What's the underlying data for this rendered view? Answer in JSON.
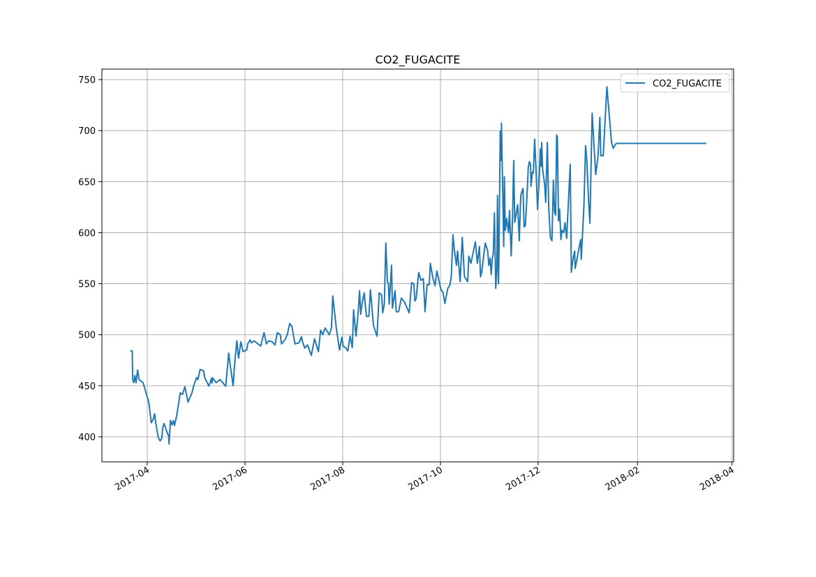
{
  "chart_data": {
    "type": "line",
    "title": "CO2_FUGACITE",
    "xlabel": "",
    "ylabel": "",
    "x_unit": "days since 2017-04-01",
    "xlim": [
      -28.3,
      366.0
    ],
    "ylim": [
      375.4,
      760.3
    ],
    "grid": true,
    "legend_position": "top-right",
    "xticks": [
      {
        "value": 0,
        "label": "2017-04"
      },
      {
        "value": 61,
        "label": "2017-06"
      },
      {
        "value": 122,
        "label": "2017-08"
      },
      {
        "value": 183,
        "label": "2017-10"
      },
      {
        "value": 244,
        "label": "2017-12"
      },
      {
        "value": 306,
        "label": "2018-02"
      },
      {
        "value": 365,
        "label": "2018-04"
      }
    ],
    "yticks": [
      {
        "value": 400,
        "label": "400"
      },
      {
        "value": 450,
        "label": "450"
      },
      {
        "value": 500,
        "label": "500"
      },
      {
        "value": 550,
        "label": "550"
      },
      {
        "value": 600,
        "label": "600"
      },
      {
        "value": 650,
        "label": "650"
      },
      {
        "value": 700,
        "label": "700"
      },
      {
        "value": 750,
        "label": "750"
      }
    ],
    "series": [
      {
        "name": "CO2_FUGACITE",
        "color": "#1f77b4",
        "x": [
          -10.6,
          -9.4,
          -9.1,
          -8.4,
          -7.7,
          -7.0,
          -6.0,
          -5.1,
          -2.6,
          1.0,
          2.5,
          3.9,
          4.6,
          5.4,
          6.8,
          8.0,
          9.0,
          9.7,
          10.5,
          12.6,
          13.3,
          13.6,
          14.5,
          15.5,
          16.3,
          17.0,
          18.4,
          20.6,
          22.0,
          23.5,
          25.4,
          27.9,
          28.9,
          30.8,
          31.6,
          33.0,
          35.2,
          35.9,
          38.5,
          40.0,
          40.4,
          40.8,
          43.0,
          45.5,
          49.0,
          50.8,
          51.8,
          53.6,
          54.5,
          55.9,
          57.0,
          58.4,
          59.8,
          62.0,
          62.7,
          64.2,
          65.0,
          66.7,
          69.3,
          70.8,
          72.9,
          74.4,
          75.8,
          78.0,
          79.7,
          81.2,
          83.0,
          83.8,
          86.0,
          87.4,
          88.9,
          90.3,
          92.2,
          94.7,
          96.2,
          96.9,
          98.3,
          100.0,
          102.4,
          104.4,
          106.8,
          108.2,
          109.6,
          111.0,
          113.6,
          115.0,
          115.8,
          118.0,
          118.6,
          120.0,
          121.5,
          122.3,
          123.7,
          125.2,
          126.6,
          128.0,
          128.8,
          130.3,
          131.7,
          132.5,
          133.2,
          134.0,
          135.4,
          136.8,
          138.3,
          139.3,
          141.2,
          143.4,
          144.8,
          146.3,
          147.0,
          148.0,
          148.9,
          149.9,
          150.5,
          151.0,
          152.5,
          153.0,
          154.7,
          155.4,
          156.9,
          158.6,
          160.6,
          163.5,
          165.0,
          166.4,
          167.0,
          167.8,
          169.4,
          170.8,
          172.3,
          173.4,
          174.7,
          176.0,
          176.7,
          178.2,
          179.6,
          180.8,
          183.3,
          184.6,
          185.8,
          187.6,
          189.0,
          189.8,
          190.8,
          191.7,
          193.0,
          193.7,
          195.3,
          196.6,
          198.0,
          200.0,
          200.7,
          202.0,
          203.6,
          204.8,
          206.0,
          207.3,
          208.0,
          208.7,
          211.0,
          212.5,
          213.2,
          214.0,
          214.7,
          215.4,
          216.0,
          216.7,
          217.5,
          218.2,
          218.6,
          219.2,
          219.6,
          220.3,
          221.0,
          221.1,
          222.5,
          222.9,
          223.5,
          224.3,
          225.5,
          226.1,
          227.2,
          228.0,
          228.7,
          229.4,
          231.2,
          232.2,
          233.1,
          234.5,
          235.2,
          236.0,
          237.1,
          237.8,
          238.5,
          239.2,
          239.5,
          240.4,
          241.0,
          241.8,
          242.6,
          243.6,
          244.7,
          245.3,
          245.8,
          246.2,
          246.8,
          248.0,
          248.7,
          249.7,
          250.6,
          251.6,
          252.6,
          253.5,
          254.2,
          254.9,
          255.5,
          256.0,
          256.7,
          257.4,
          258.2,
          258.9,
          259.9,
          260.8,
          261.8,
          264.0,
          264.7,
          265.8,
          266.8,
          267.1,
          268.3,
          270.5,
          270.9,
          272.6,
          273.6,
          274.4,
          275.5,
          276.3,
          277.7,
          279.9,
          281.4,
          282.5,
          283.1,
          284.6,
          286.9,
          289.8,
          290.8,
          292.7,
          348.9
        ],
        "y": [
          484.3,
          484,
          456.5,
          453,
          460,
          453,
          465.6,
          456,
          453,
          433.7,
          413.7,
          417.8,
          422.5,
          413,
          399.5,
          396,
          398,
          409,
          413,
          403,
          401.5,
          393,
          416,
          411.6,
          416,
          411,
          421,
          443,
          441.5,
          449,
          434,
          443,
          449.6,
          458,
          456,
          466,
          464.5,
          457.6,
          449.7,
          457,
          452.5,
          457.8,
          453,
          456,
          449.5,
          482,
          470,
          450,
          470,
          494,
          477,
          493,
          483.4,
          485,
          491,
          495,
          492,
          494,
          490.7,
          489,
          502,
          491,
          494,
          493,
          490,
          502,
          500,
          491,
          495,
          500,
          511,
          508,
          491,
          492,
          498,
          493,
          487,
          490,
          479.8,
          496,
          483.4,
          504.4,
          500,
          506.6,
          500,
          506.6,
          538,
          506.6,
          500,
          485,
          497.6,
          488.6,
          487.4,
          484,
          498.6,
          487.4,
          524.4,
          498.6,
          522.6,
          543,
          520,
          529.4,
          541,
          518,
          518,
          544,
          509,
          498.6,
          541,
          539,
          521.5,
          530,
          590,
          552,
          550,
          530,
          568,
          526,
          543,
          522.6,
          522.6,
          536,
          531.8,
          521.5,
          551,
          550,
          533,
          535,
          561,
          553.3,
          555,
          522.6,
          549,
          549,
          570,
          556,
          548,
          562.5,
          544,
          541.5,
          530.6,
          545.4,
          549,
          558,
          598,
          583,
          568,
          582,
          552,
          595.5,
          556.8,
          552,
          577,
          570,
          582,
          591,
          570,
          586.5,
          556.8,
          561,
          589.8,
          582,
          568,
          575,
          559,
          575,
          579.6,
          619.4,
          545.4,
          563.6,
          636.5,
          550,
          586.6,
          699.4,
          670.7,
          707.4,
          586.5,
          654.8,
          602.4,
          613.8,
          600,
          621.7,
          577.3,
          616,
          670.7,
          610.2,
          627.4,
          592,
          636.5,
          643.3,
          605.7,
          606.8,
          637.7,
          663.9,
          669.6,
          667,
          645.6,
          659.3,
          658.6,
          691.5,
          663.9,
          622.8,
          654.8,
          682.1,
          665,
          688.3,
          661.7,
          648,
          629.7,
          688.3,
          625.1,
          595.5,
          592,
          651.4,
          620.6,
          617.2,
          695.7,
          693.4,
          611.6,
          623,
          593.2,
          602.4,
          600,
          609.8,
          594.4,
          667,
          561.3,
          575,
          582,
          565,
          575,
          593.2,
          573.8,
          627.4,
          685.3,
          669.6,
          629.7,
          609.2,
          717,
          657,
          675.3,
          713,
          675.3,
          675.3,
          743,
          688.3,
          682.7,
          687.5,
          687.5
        ]
      }
    ]
  }
}
